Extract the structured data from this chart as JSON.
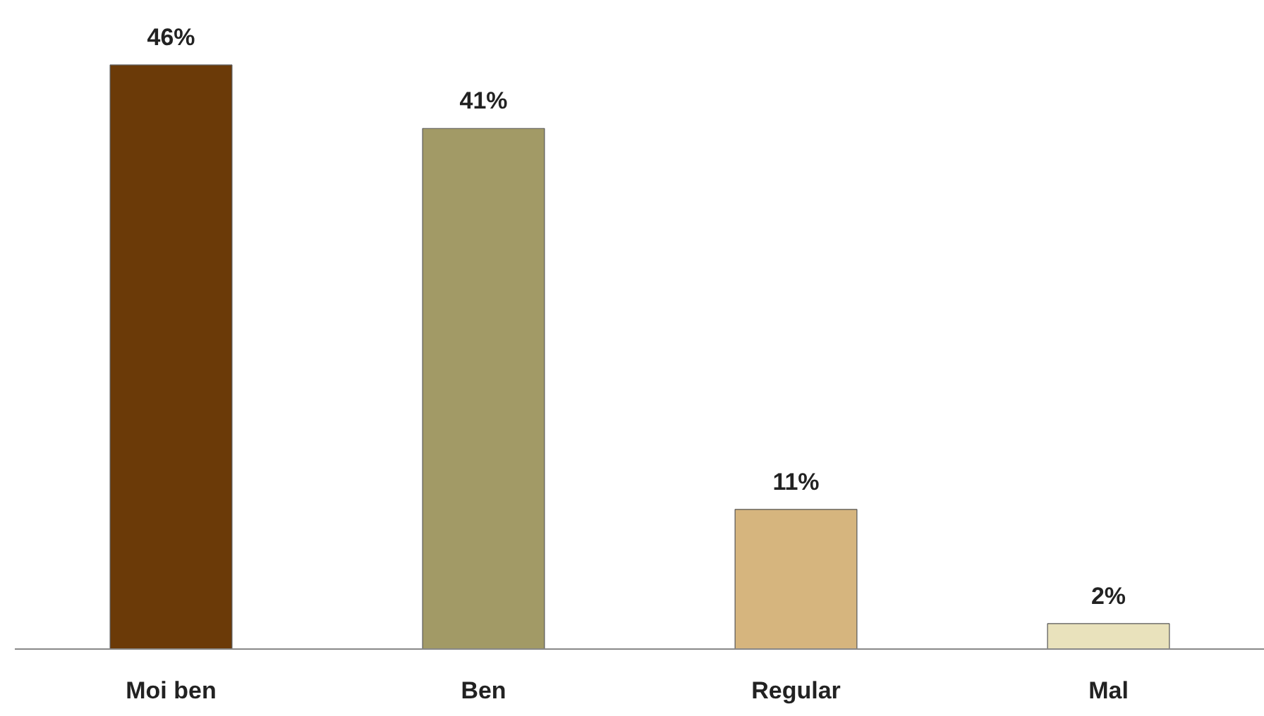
{
  "chart_data": {
    "type": "bar",
    "categories": [
      "Moi ben",
      "Ben",
      "Regular",
      "Mal"
    ],
    "values": [
      46,
      41,
      11,
      2
    ],
    "colors": [
      "#6b3a08",
      "#a29a66",
      "#d6b57e",
      "#e9e2bc"
    ],
    "value_labels": [
      "46%",
      "41%",
      "11%",
      "2%"
    ],
    "tick_labels": "x",
    "grid": false
  }
}
